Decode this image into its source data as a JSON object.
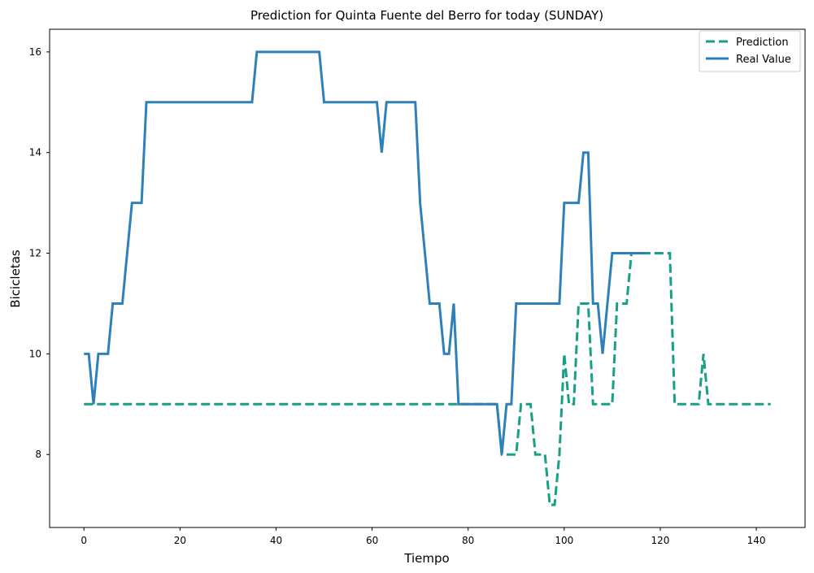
{
  "chart_data": {
    "type": "line",
    "title": "Prediction for Quinta Fuente del Berro for today (SUNDAY)",
    "xlabel": "Tiempo",
    "ylabel": "Bicicletas",
    "xlim": [
      -7.15,
      150.15
    ],
    "ylim": [
      6.55,
      16.45
    ],
    "xticks": [
      0,
      20,
      40,
      60,
      80,
      100,
      120,
      140
    ],
    "yticks": [
      8,
      10,
      12,
      14,
      16
    ],
    "grid": false,
    "legend_position": "top-right",
    "series": [
      {
        "name": "Prediction",
        "style": "dashed",
        "color": "#16a085",
        "x": [
          0,
          86,
          87,
          90,
          91,
          93,
          94,
          96,
          97,
          98,
          99,
          100,
          101,
          102,
          103,
          104,
          105,
          106,
          110,
          111,
          113,
          114,
          115,
          122,
          123,
          127,
          128,
          129,
          130,
          131,
          143
        ],
        "y": [
          9,
          9,
          8,
          8,
          9,
          9,
          8,
          8,
          7,
          7,
          8,
          10,
          9,
          9,
          11,
          11,
          11,
          9,
          9,
          11,
          11,
          12,
          12,
          12,
          9,
          9,
          9,
          10,
          9,
          9,
          9
        ]
      },
      {
        "name": "Real Value",
        "style": "solid",
        "color": "#2e80b9",
        "x": [
          0,
          1,
          2,
          3,
          4,
          5,
          6,
          7,
          8,
          9,
          10,
          11,
          12,
          13,
          14,
          35,
          36,
          49,
          50,
          61,
          62,
          63,
          69,
          70,
          71,
          72,
          73,
          74,
          75,
          76,
          77,
          78,
          86,
          87,
          88,
          89,
          90,
          98,
          99,
          100,
          103,
          104,
          105,
          106,
          107,
          108,
          109,
          110,
          117
        ],
        "y": [
          10,
          10,
          9,
          10,
          10,
          10,
          11,
          11,
          11,
          12,
          13,
          13,
          13,
          15,
          15,
          15,
          16,
          16,
          15,
          15,
          14,
          15,
          15,
          13,
          12,
          11,
          11,
          11,
          10,
          10,
          11,
          9,
          9,
          8,
          9,
          9,
          11,
          11,
          11,
          13,
          13,
          14,
          14,
          11,
          11,
          10,
          11,
          12,
          12
        ]
      }
    ]
  }
}
